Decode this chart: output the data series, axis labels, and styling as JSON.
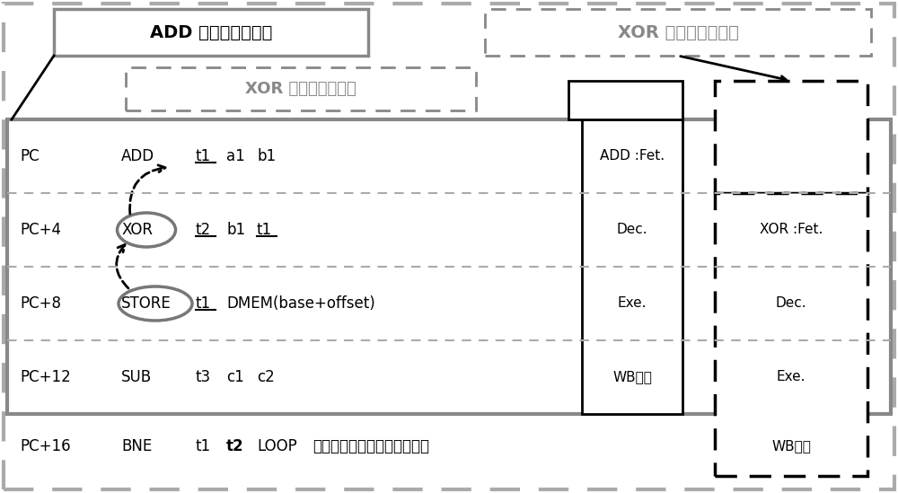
{
  "fig_width": 10.0,
  "fig_height": 5.49,
  "bg_color": "#ffffff",
  "label_add_window": "ADD 指令的相干窗口",
  "label_xor_window": "XOR 指令的相干窗口",
  "label_xor_instr": "XOR 指令的相干指令",
  "footer_text": "提交：意味着相干窗口的结束",
  "wb_text": "WB提交",
  "pc_labels": [
    "PC",
    "PC+4",
    "PC+8",
    "PC+12",
    "PC+16"
  ],
  "instrs": [
    "ADD",
    "XOR",
    "STORE",
    "SUB",
    "BNE"
  ],
  "stage_add": [
    "ADD :Fet.",
    "Dec.",
    "Exe.",
    "WB提交"
  ],
  "stage_xor": [
    "XOR :Fet.",
    "Dec.",
    "Exe.",
    "WB提交"
  ]
}
